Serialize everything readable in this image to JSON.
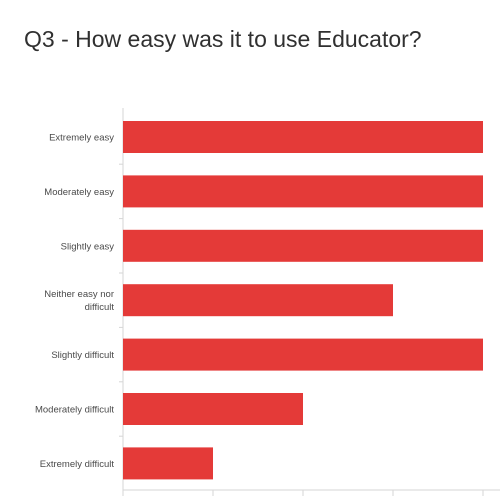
{
  "title": "Q3 - How easy was it to use Educator?",
  "chart_data": {
    "type": "bar",
    "orientation": "horizontal",
    "title": "Q3 - How easy was it to use Educator?",
    "categories": [
      "Extremely easy",
      "Moderately easy",
      "Slightly easy",
      "Neither easy nor difficult",
      "Slightly difficult",
      "Moderately difficult",
      "Extremely difficult"
    ],
    "category_lines": [
      [
        "Extremely easy"
      ],
      [
        "Moderately easy"
      ],
      [
        "Slightly easy"
      ],
      [
        "Neither easy nor",
        "difficult"
      ],
      [
        "Slightly difficult"
      ],
      [
        "Moderately difficult"
      ],
      [
        "Extremely difficult"
      ]
    ],
    "values": [
      4,
      4,
      4,
      3,
      4,
      2,
      1
    ],
    "xlim": [
      0,
      4
    ],
    "xticks": [
      0,
      1,
      2,
      3,
      4
    ],
    "xlabel": "",
    "ylabel": "",
    "bar_color": "#e43a38",
    "axis_color": "#d6d6d6",
    "grid": false
  }
}
